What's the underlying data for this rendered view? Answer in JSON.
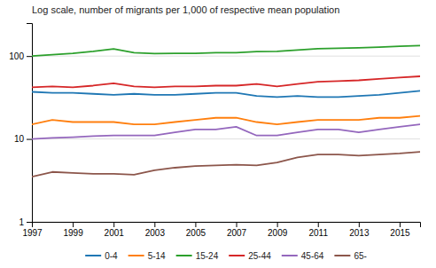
{
  "chart_data": {
    "type": "line",
    "title": "Log scale, number of migrants per 1,000 of respective mean population",
    "x": [
      1997,
      1998,
      1999,
      2000,
      2001,
      2002,
      2003,
      2004,
      2005,
      2006,
      2007,
      2008,
      2009,
      2010,
      2011,
      2012,
      2013,
      2014,
      2015,
      2016
    ],
    "series": [
      {
        "name": "0-4",
        "values": [
          37,
          36,
          36,
          35,
          34,
          35,
          34,
          34,
          35,
          36,
          36,
          33,
          32,
          33,
          32,
          32,
          33,
          34,
          36,
          38
        ]
      },
      {
        "name": "5-14",
        "values": [
          15,
          17,
          16,
          16,
          16,
          15,
          15,
          16,
          17,
          18,
          18,
          16,
          15,
          16,
          17,
          17,
          17,
          18,
          18,
          19
        ]
      },
      {
        "name": "15-24",
        "values": [
          100,
          104,
          108,
          114,
          122,
          110,
          107,
          108,
          108,
          110,
          110,
          113,
          114,
          118,
          123,
          124,
          126,
          128,
          131,
          134
        ]
      },
      {
        "name": "25-44",
        "values": [
          42,
          43,
          42,
          44,
          47,
          43,
          42,
          43,
          43,
          44,
          44,
          46,
          43,
          46,
          49,
          50,
          51,
          53,
          55,
          57
        ]
      },
      {
        "name": "45-64",
        "values": [
          10,
          10.3,
          10.5,
          10.8,
          11,
          11,
          11,
          12,
          13,
          13,
          14,
          11,
          11,
          12,
          13,
          13,
          12,
          13,
          14,
          15
        ]
      },
      {
        "name": "65-",
        "values": [
          3.5,
          4.0,
          3.9,
          3.8,
          3.8,
          3.7,
          4.2,
          4.5,
          4.7,
          4.8,
          4.9,
          4.8,
          5.2,
          6.0,
          6.5,
          6.5,
          6.3,
          6.5,
          6.7,
          7.0
        ]
      }
    ],
    "xlim": [
      1997,
      2016
    ],
    "ylim": [
      1,
      250
    ],
    "xticks": [
      1997,
      1999,
      2001,
      2003,
      2005,
      2007,
      2009,
      2011,
      2013,
      2015
    ],
    "yticks": [
      1,
      10,
      100
    ],
    "log": "y",
    "grid": true,
    "legend": "bottom"
  }
}
